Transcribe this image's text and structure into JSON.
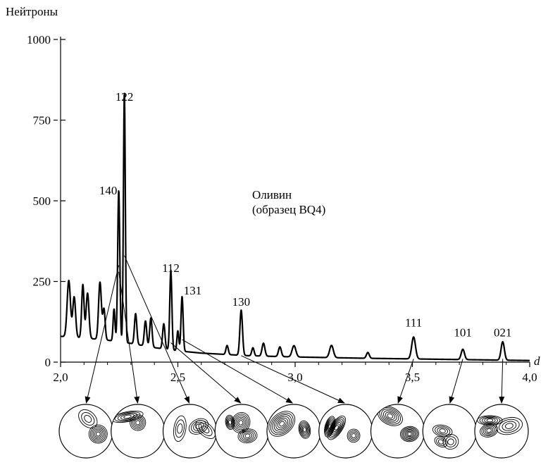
{
  "chart_data": {
    "type": "line",
    "title": "",
    "ylabel": "Нейтроны",
    "xlabel": "d",
    "xlim": [
      2.0,
      4.0
    ],
    "ylim": [
      0,
      1000
    ],
    "x_ticks": [
      2.0,
      2.5,
      3.0,
      3.5,
      4.0
    ],
    "x_tick_labels": [
      "2,0",
      "2,5",
      "3,0",
      "3,5",
      "4,0"
    ],
    "y_ticks": [
      0,
      250,
      500,
      750,
      1000
    ],
    "y_tick_labels": [
      "0",
      "250",
      "500",
      "750",
      "1000"
    ],
    "annotation": [
      "Оливин",
      "(образец BQ4)"
    ],
    "grid": false,
    "legend": "none",
    "baseline": [
      [
        2.0,
        80
      ],
      [
        2.1,
        75
      ],
      [
        2.2,
        68
      ],
      [
        2.3,
        58
      ],
      [
        2.4,
        45
      ],
      [
        2.5,
        35
      ],
      [
        2.6,
        28
      ],
      [
        2.8,
        20
      ],
      [
        3.0,
        16
      ],
      [
        3.3,
        12
      ],
      [
        3.6,
        9
      ],
      [
        3.8,
        7
      ],
      [
        4.0,
        5
      ]
    ],
    "peaks": [
      {
        "d": 2.035,
        "height": 175,
        "width": 0.007
      },
      {
        "d": 2.058,
        "height": 125,
        "width": 0.006
      },
      {
        "d": 2.095,
        "height": 165,
        "width": 0.005
      },
      {
        "d": 2.115,
        "height": 140,
        "width": 0.006
      },
      {
        "d": 2.168,
        "height": 178,
        "width": 0.006
      },
      {
        "d": 2.185,
        "height": 95,
        "width": 0.005
      },
      {
        "d": 2.228,
        "height": 100,
        "width": 0.004
      },
      {
        "d": 2.248,
        "height": 470,
        "width": 0.0045
      },
      {
        "d": 2.272,
        "height": 778,
        "width": 0.004
      },
      {
        "d": 2.32,
        "height": 95,
        "width": 0.005
      },
      {
        "d": 2.362,
        "height": 78,
        "width": 0.005
      },
      {
        "d": 2.385,
        "height": 90,
        "width": 0.005
      },
      {
        "d": 2.44,
        "height": 78,
        "width": 0.005
      },
      {
        "d": 2.47,
        "height": 247,
        "width": 0.0045
      },
      {
        "d": 2.5,
        "height": 62,
        "width": 0.004
      },
      {
        "d": 2.518,
        "height": 170,
        "width": 0.0045
      },
      {
        "d": 2.71,
        "height": 28,
        "width": 0.005
      },
      {
        "d": 2.77,
        "height": 140,
        "width": 0.0055
      },
      {
        "d": 2.82,
        "height": 25,
        "width": 0.005
      },
      {
        "d": 2.865,
        "height": 40,
        "width": 0.006
      },
      {
        "d": 2.935,
        "height": 30,
        "width": 0.006
      },
      {
        "d": 2.995,
        "height": 35,
        "width": 0.008
      },
      {
        "d": 3.155,
        "height": 38,
        "width": 0.008
      },
      {
        "d": 3.31,
        "height": 18,
        "width": 0.006
      },
      {
        "d": 3.505,
        "height": 68,
        "width": 0.008
      },
      {
        "d": 3.715,
        "height": 32,
        "width": 0.007
      },
      {
        "d": 3.885,
        "height": 57,
        "width": 0.007
      }
    ],
    "peak_labels": [
      {
        "text": "140",
        "d": 2.248,
        "y": 520,
        "dx": -15
      },
      {
        "text": "122",
        "d": 2.272,
        "y": 810,
        "dx": 0
      },
      {
        "text": "112",
        "d": 2.47,
        "y": 280,
        "dx": 0
      },
      {
        "text": "131",
        "d": 2.518,
        "y": 210,
        "dx": 15
      },
      {
        "text": "130",
        "d": 2.77,
        "y": 175,
        "dx": 0
      },
      {
        "text": "111",
        "d": 3.505,
        "y": 110,
        "dx": 0
      },
      {
        "text": "101",
        "d": 3.715,
        "y": 80,
        "dx": 0
      },
      {
        "text": "021",
        "d": 3.885,
        "y": 80,
        "dx": 0
      }
    ],
    "pole_figures": [
      {
        "id": "pf-1",
        "from_d": 2.248,
        "from_y": 300
      },
      {
        "id": "pf-2",
        "from_d": 2.248,
        "from_y": 280
      },
      {
        "id": "pf-3",
        "from_d": 2.272,
        "from_y": 330
      },
      {
        "id": "pf-4",
        "from_d": 2.47,
        "from_y": 60
      },
      {
        "id": "pf-5",
        "from_d": 2.518,
        "from_y": 70
      },
      {
        "id": "pf-6",
        "from_d": 2.77,
        "from_y": 20
      },
      {
        "id": "pf-7",
        "from_d": 3.505,
        "from_y": 10
      },
      {
        "id": "pf-8",
        "from_d": 3.715,
        "from_y": 10
      },
      {
        "id": "pf-9",
        "from_d": 3.885,
        "from_y": 10
      }
    ]
  }
}
